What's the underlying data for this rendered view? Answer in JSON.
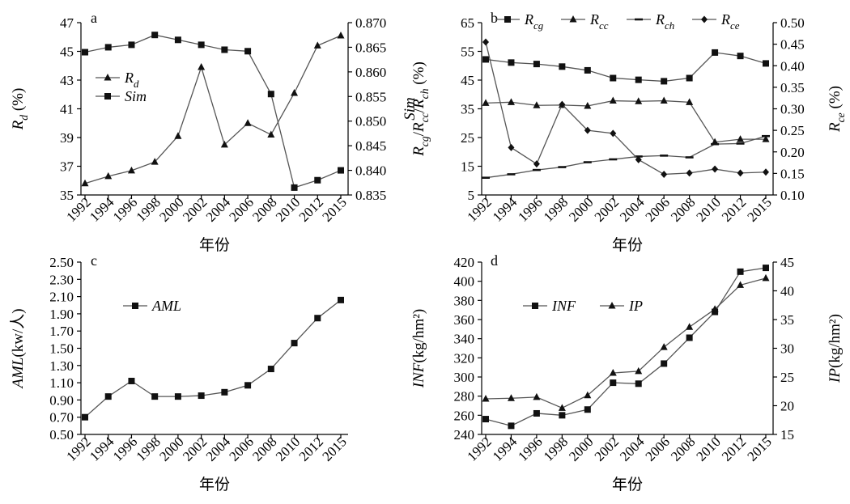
{
  "chart_data": [
    {
      "id": "a",
      "type": "line",
      "panel_letter": "a",
      "categories": [
        "1992",
        "1994",
        "1996",
        "1998",
        "2000",
        "2002",
        "2004",
        "2006",
        "2008",
        "2010",
        "2012",
        "2015"
      ],
      "xlabel": "年份",
      "ylabel": "R_d (%)",
      "ylabel_parts": [
        {
          "t": "R",
          "i": true
        },
        {
          "t": "d",
          "i": true,
          "sub": true
        },
        {
          "t": " (%)"
        }
      ],
      "ylim": [
        35,
        47
      ],
      "yticks": [
        35,
        37,
        39,
        41,
        43,
        45,
        47
      ],
      "ytick_labels": [
        "35",
        "37",
        "39",
        "41",
        "43",
        "45",
        "47"
      ],
      "y2label": "Sim",
      "y2label_parts": [
        {
          "t": "Sim",
          "i": true
        }
      ],
      "y2lim": [
        0.835,
        0.87
      ],
      "y2ticks": [
        0.835,
        0.84,
        0.845,
        0.85,
        0.855,
        0.86,
        0.865,
        0.87
      ],
      "y2tick_labels": [
        "0.835",
        "0.840",
        "0.845",
        "0.850",
        "0.855",
        "0.860",
        "0.865",
        "0.870"
      ],
      "legend_position": "left-middle",
      "series": [
        {
          "name": "R_d",
          "name_parts": [
            {
              "t": "R",
              "i": true
            },
            {
              "t": "d",
              "i": true,
              "sub": true
            }
          ],
          "marker": "triangle",
          "axis": "left",
          "values": [
            35.8,
            36.3,
            36.7,
            37.3,
            39.1,
            43.9,
            38.5,
            40.0,
            39.2,
            42.1,
            45.4,
            46.1
          ]
        },
        {
          "name": "Sim",
          "name_parts": [
            {
              "t": "Sim",
              "i": true
            }
          ],
          "marker": "square",
          "axis": "right",
          "values": [
            0.864,
            0.865,
            0.8655,
            0.8675,
            0.8665,
            0.8655,
            0.8645,
            0.8642,
            0.8555,
            0.8365,
            0.838,
            0.84
          ]
        }
      ]
    },
    {
      "id": "b",
      "type": "line",
      "panel_letter": "b",
      "categories": [
        "1992",
        "1994",
        "1996",
        "1998",
        "2000",
        "2002",
        "2004",
        "2006",
        "2008",
        "2010",
        "2012",
        "2015"
      ],
      "xlabel": "年份",
      "ylabel": "R_cg/R_cc/R_ch (%)",
      "ylabel_parts": [
        {
          "t": "R",
          "i": true
        },
        {
          "t": "cg",
          "i": true,
          "sub": true
        },
        {
          "t": "/"
        },
        {
          "t": "R",
          "i": true
        },
        {
          "t": "cc",
          "i": true,
          "sub": true
        },
        {
          "t": "/"
        },
        {
          "t": "R",
          "i": true
        },
        {
          "t": "ch",
          "i": true,
          "sub": true
        },
        {
          "t": " (%)"
        }
      ],
      "ylim": [
        5,
        65
      ],
      "yticks": [
        5,
        15,
        25,
        35,
        45,
        55,
        65
      ],
      "ytick_labels": [
        "5",
        "15",
        "25",
        "35",
        "45",
        "55",
        "65"
      ],
      "y2label": "R_ce (%)",
      "y2label_parts": [
        {
          "t": "R",
          "i": true
        },
        {
          "t": "ce",
          "i": true,
          "sub": true
        },
        {
          "t": " (%)"
        }
      ],
      "y2lim": [
        0.1,
        0.5
      ],
      "y2ticks": [
        0.1,
        0.15,
        0.2,
        0.25,
        0.3,
        0.35,
        0.4,
        0.45,
        0.5
      ],
      "y2tick_labels": [
        "0.10",
        "0.15",
        "0.20",
        "0.25",
        "0.30",
        "0.35",
        "0.40",
        "0.45",
        "0.50"
      ],
      "legend_position": "top",
      "series": [
        {
          "name": "R_cg",
          "name_parts": [
            {
              "t": "R",
              "i": true
            },
            {
              "t": "cg",
              "i": true,
              "sub": true
            }
          ],
          "marker": "square",
          "axis": "left",
          "values": [
            52.2,
            51.1,
            50.6,
            49.7,
            48.4,
            45.7,
            45.1,
            44.6,
            45.7,
            54.6,
            53.4,
            50.8
          ]
        },
        {
          "name": "R_cc",
          "name_parts": [
            {
              "t": "R",
              "i": true
            },
            {
              "t": "cc",
              "i": true,
              "sub": true
            }
          ],
          "marker": "triangle",
          "axis": "left",
          "values": [
            37.0,
            37.3,
            36.2,
            36.3,
            36.0,
            37.8,
            37.6,
            37.8,
            37.3,
            23.4,
            24.4,
            24.4
          ]
        },
        {
          "name": "R_ch",
          "name_parts": [
            {
              "t": "R",
              "i": true
            },
            {
              "t": "ch",
              "i": true,
              "sub": true
            }
          ],
          "marker": "dash",
          "axis": "left",
          "values": [
            11.0,
            12.2,
            13.7,
            14.7,
            16.4,
            17.4,
            18.4,
            18.7,
            18.1,
            22.7,
            22.9,
            25.5
          ]
        },
        {
          "name": "R_ce",
          "name_parts": [
            {
              "t": "R",
              "i": true
            },
            {
              "t": "ce",
              "i": true,
              "sub": true
            }
          ],
          "marker": "diamond",
          "axis": "right",
          "values": [
            0.455,
            0.21,
            0.172,
            0.31,
            0.25,
            0.243,
            0.182,
            0.148,
            0.151,
            0.16,
            0.151,
            0.153
          ]
        }
      ]
    },
    {
      "id": "c",
      "type": "line",
      "panel_letter": "c",
      "categories": [
        "1992",
        "1994",
        "1996",
        "1998",
        "2000",
        "2002",
        "2004",
        "2006",
        "2008",
        "2010",
        "2012",
        "2015"
      ],
      "xlabel": "年份",
      "ylabel": "AML(kw/人)",
      "ylabel_parts": [
        {
          "t": "AML",
          "i": true
        },
        {
          "t": "(kw/人)"
        }
      ],
      "ylim": [
        0.5,
        2.5
      ],
      "yticks": [
        0.5,
        0.7,
        0.9,
        1.1,
        1.3,
        1.5,
        1.7,
        1.9,
        2.1,
        2.3,
        2.5
      ],
      "ytick_labels": [
        "0.50",
        "0.70",
        "0.90",
        "1.10",
        "1.30",
        "1.50",
        "1.70",
        "1.90",
        "2.10",
        "2.30",
        "2.50"
      ],
      "legend_position": "left-upper",
      "series": [
        {
          "name": "AML",
          "name_parts": [
            {
              "t": "AML",
              "i": true
            }
          ],
          "marker": "square",
          "axis": "left",
          "values": [
            0.7,
            0.94,
            1.12,
            0.94,
            0.94,
            0.95,
            0.99,
            1.07,
            1.26,
            1.56,
            1.85,
            2.06
          ]
        }
      ]
    },
    {
      "id": "d",
      "type": "line",
      "panel_letter": "d",
      "categories": [
        "1992",
        "1994",
        "1996",
        "1998",
        "2000",
        "2002",
        "2004",
        "2006",
        "2008",
        "2010",
        "2012",
        "2015"
      ],
      "xlabel": "年份",
      "ylabel": "INF(kg/hm²)",
      "ylabel_parts": [
        {
          "t": "INF",
          "i": true
        },
        {
          "t": "(kg/hm²)"
        }
      ],
      "ylim": [
        240,
        420
      ],
      "yticks": [
        240,
        260,
        280,
        300,
        320,
        340,
        360,
        380,
        400,
        420
      ],
      "ytick_labels": [
        "240",
        "260",
        "280",
        "300",
        "320",
        "340",
        "360",
        "380",
        "400",
        "420"
      ],
      "y2label": "IP(kg/hm²)",
      "y2label_parts": [
        {
          "t": "IP",
          "i": true
        },
        {
          "t": "(kg/hm²)"
        }
      ],
      "y2lim": [
        15,
        45
      ],
      "y2ticks": [
        15,
        20,
        25,
        30,
        35,
        40,
        45
      ],
      "y2tick_labels": [
        "15",
        "20",
        "25",
        "30",
        "35",
        "40",
        "45"
      ],
      "legend_position": "left-upper",
      "series": [
        {
          "name": "INF",
          "name_parts": [
            {
              "t": "INF",
              "i": true
            }
          ],
          "marker": "square",
          "axis": "left",
          "values": [
            256,
            249,
            262,
            260,
            266,
            294,
            293,
            314,
            341,
            368,
            410,
            414
          ]
        },
        {
          "name": "IP",
          "name_parts": [
            {
              "t": "IP",
              "i": true
            }
          ],
          "marker": "triangle",
          "axis": "right",
          "values": [
            21.2,
            21.3,
            21.5,
            19.6,
            21.8,
            25.7,
            26.0,
            30.2,
            33.7,
            36.8,
            41.0,
            42.2
          ]
        }
      ]
    }
  ]
}
